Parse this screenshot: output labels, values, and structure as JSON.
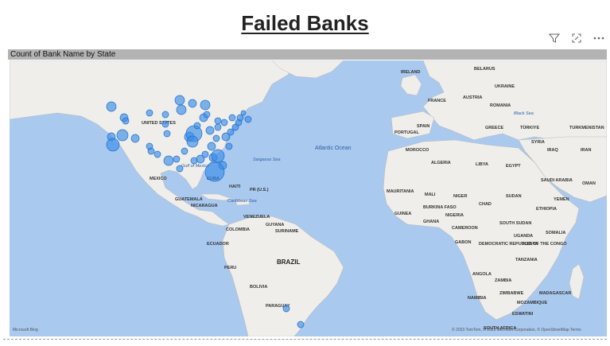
{
  "title": "Failed Banks",
  "toolbar": {
    "icons": [
      "filter-icon",
      "focus-mode-icon",
      "more-options-icon"
    ]
  },
  "visual": {
    "header": "Count of Bank Name by State"
  },
  "map": {
    "bubble_color": "#3a8ee6",
    "ocean_color": "#a9c9ef",
    "land_color": "#efeeea",
    "bubble_count_note": "",
    "labels": {
      "ireland": "IRELAND",
      "belarus": "BELARUS",
      "austria": "AUSTRIA",
      "ukraine": "UKRAINE",
      "france": "FRANCE",
      "romania": "ROMANIA",
      "spain": "SPAIN",
      "portugal": "PORTUGAL",
      "greece": "GREECE",
      "turkiye": "TÜRKIYE",
      "turkmenistan": "TURKMENISTAN",
      "black_sea": "Black Sea",
      "morocco": "MOROCCO",
      "algeria": "ALGERIA",
      "libya": "LIBYA",
      "egypt": "EGYPT",
      "syria": "SYRIA",
      "iraq": "IRAQ",
      "iran": "IRAN",
      "saudi_arabia": "SAUDI ARABIA",
      "oman": "OMAN",
      "yemen": "YEMEN",
      "mauritania": "MAURITANIA",
      "mali": "MALI",
      "niger": "NIGER",
      "chad": "CHAD",
      "sudan": "SUDAN",
      "ethiopia": "ETHIOPIA",
      "guinea": "GUINEA",
      "burkina_faso": "BURKINA FASO",
      "nigeria": "NIGERIA",
      "ghana": "GHANA",
      "cameroon": "CAMEROON",
      "south_sudan": "SOUTH SUDAN",
      "somalia": "SOMALIA",
      "gabon": "GABON",
      "uganda": "UGANDA",
      "kenya": "KENYA",
      "drc": "DEMOCRATIC REPUBLIC OF THE CONGO",
      "tanzania": "TANZANIA",
      "angola": "ANGOLA",
      "zambia": "ZAMBIA",
      "zimbabwe": "ZIMBABWE",
      "mozambique": "MOZAMBIQUE",
      "namibia": "NAMIBIA",
      "madagascar": "MADAGASCAR",
      "eswatini": "ESWATINI",
      "south_africa": "SOUTH AFRICA",
      "united_states": "UNITED STATES",
      "mexico": "MEXICO",
      "gulf_of_mexico": "Gulf of Mexico",
      "cuba": "CUBA",
      "haiti": "HAITI",
      "pr": "PR (U.S.)",
      "guatemala": "GUATEMALA",
      "nicaragua": "NICARAGUA",
      "caribbean_sea": "Caribbean Sea",
      "sargasso_sea": "Sargasso Sea",
      "atlantic_ocean": "Atlantic Ocean",
      "venezuela": "VENEZUELA",
      "colombia": "COLOMBIA",
      "guyana": "GUYANA",
      "suriname": "SURINAME",
      "ecuador": "ECUADOR",
      "peru": "PERU",
      "brazil": "BRAZIL",
      "bolivia": "BOLIVIA",
      "paraguay": "PARAGUAY"
    },
    "attribution_left": "Microsoft Bing",
    "attribution_right": "© 2023 TomTom, © 2023 Microsoft Corporation, © OpenStreetMap  Terms"
  }
}
